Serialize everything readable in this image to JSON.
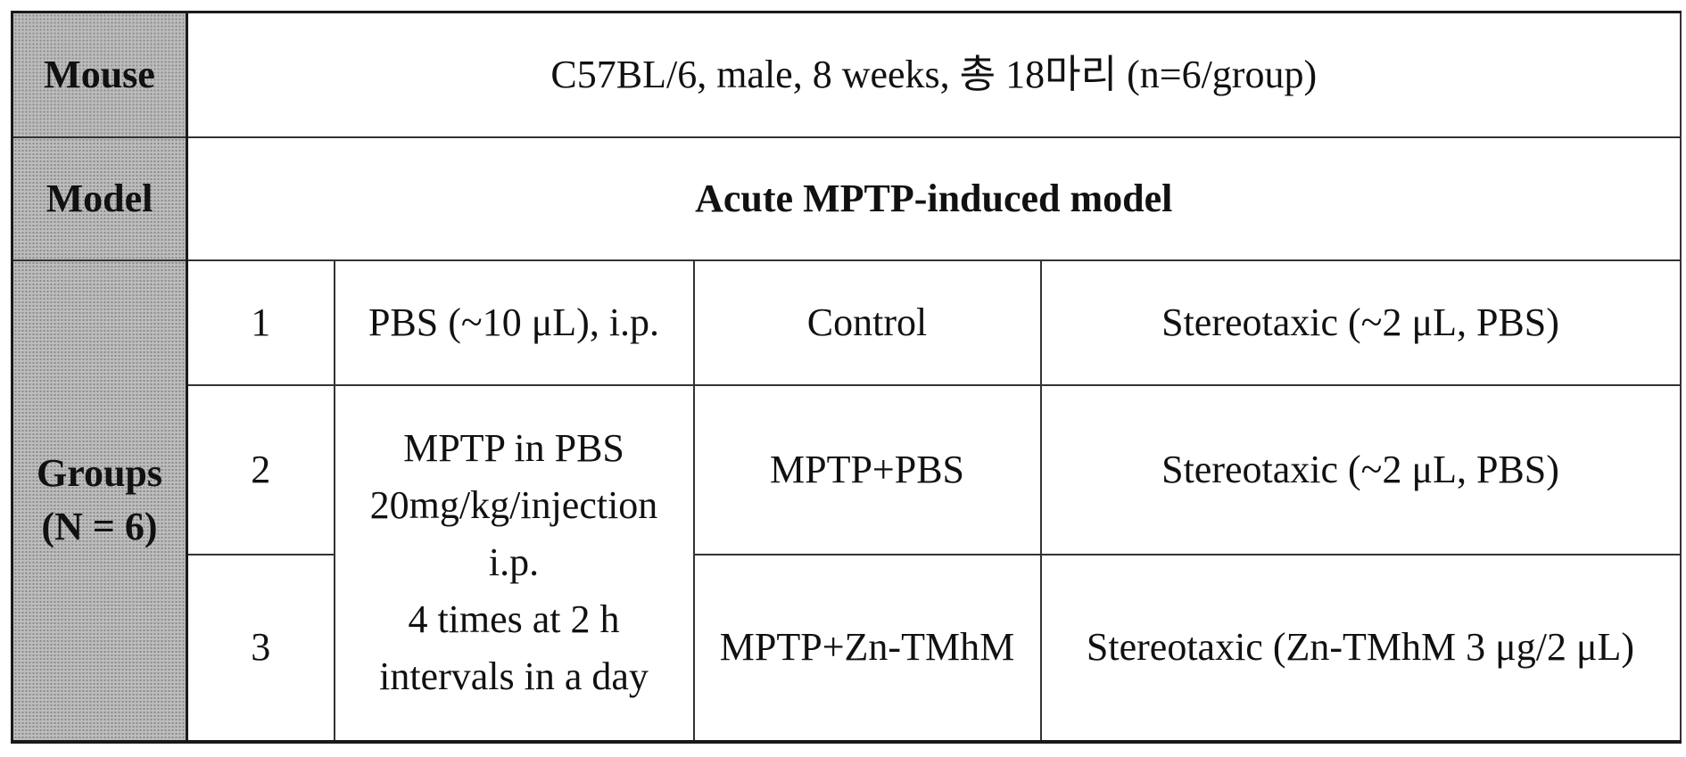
{
  "table": {
    "mouse": {
      "label": "Mouse",
      "value": "C57BL/6, male, 8 weeks, 총 18마리 (n=6/group)"
    },
    "model": {
      "label": "Model",
      "value": "Acute MPTP-induced model"
    },
    "groups": {
      "label_line1": "Groups",
      "label_line2": "(N = 6)",
      "rows": [
        {
          "number": "1",
          "treatment": "PBS (~10 μL), i.p.",
          "condition": "Control",
          "injection": "Stereotaxic (~2 μL, PBS)"
        },
        {
          "number": "2",
          "condition": "MPTP+PBS",
          "injection": "Stereotaxic (~2 μL, PBS)"
        },
        {
          "number": "3",
          "condition": "MPTP+Zn-TMhM",
          "injection": "Stereotaxic (Zn-TMhM 3 μg/2 μL)"
        }
      ],
      "mptp_treatment_lines": [
        "MPTP in PBS",
        "20mg/kg/injection",
        "i.p.",
        "4 times at 2 h",
        "intervals in a day"
      ]
    }
  }
}
